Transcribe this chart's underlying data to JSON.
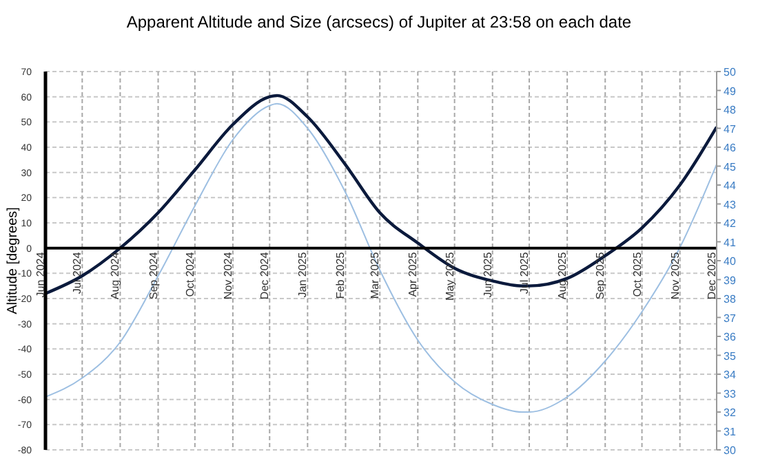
{
  "chart_data": {
    "type": "line",
    "title": "Apparent Altitude and Size (arcsecs) of Jupiter at 23:58 on each date",
    "ylabel": "Altitude [degrees]",
    "x": [
      "2024-06-01",
      "2024-07-01",
      "2024-08-01",
      "2024-09-01",
      "2024-10-01",
      "2024-11-01",
      "2024-12-01",
      "2024-12-07",
      "2025-01-01",
      "2025-02-01",
      "2025-03-01",
      "2025-04-01",
      "2025-05-01",
      "2025-06-01",
      "2025-06-25",
      "2025-07-01",
      "2025-08-01",
      "2025-09-01",
      "2025-10-01",
      "2025-11-01",
      "2025-12-01"
    ],
    "series": [
      {
        "color": "#0b1a3c",
        "values": [
          -18,
          -11,
          0,
          14,
          31,
          49,
          60,
          60.5,
          52,
          33,
          14,
          2,
          -8,
          -13,
          -15,
          -15,
          -12,
          -3,
          8,
          25,
          48
        ]
      },
      {
        "color": "#9dbfe2",
        "axis": "y2",
        "values": [
          32.8,
          33.8,
          35.7,
          39.2,
          42.9,
          46.4,
          48.2,
          48.3,
          47.0,
          43.6,
          39.5,
          35.8,
          33.6,
          32.4,
          32.0,
          32.0,
          32.8,
          34.7,
          37.3,
          40.7,
          45.1
        ]
      }
    ],
    "xlim": [
      "2024-06-01",
      "2025-12-01"
    ],
    "xticks": [
      {
        "value": "2024-06-01",
        "label": "Jun 2024"
      },
      {
        "value": "2024-07-01",
        "label": "Jul 2024"
      },
      {
        "value": "2024-08-01",
        "label": "Aug 2024"
      },
      {
        "value": "2024-09-01",
        "label": "Sep 2024"
      },
      {
        "value": "2024-10-01",
        "label": "Oct 2024"
      },
      {
        "value": "2024-11-01",
        "label": "Nov 2024"
      },
      {
        "value": "2024-12-01",
        "label": "Dec 2024"
      },
      {
        "value": "2025-01-01",
        "label": "Jan 2025"
      },
      {
        "value": "2025-02-01",
        "label": "Feb 2025"
      },
      {
        "value": "2025-03-01",
        "label": "Mar 2025"
      },
      {
        "value": "2025-04-01",
        "label": "Apr 2025"
      },
      {
        "value": "2025-05-01",
        "label": "May 2025"
      },
      {
        "value": "2025-06-01",
        "label": "Jun 2025"
      },
      {
        "value": "2025-07-01",
        "label": "Jul 2025"
      },
      {
        "value": "2025-08-01",
        "label": "Aug 2025"
      },
      {
        "value": "2025-09-01",
        "label": "Sep 2025"
      },
      {
        "value": "2025-10-01",
        "label": "Oct 2025"
      },
      {
        "value": "2025-11-01",
        "label": "Nov 2025"
      },
      {
        "value": "2025-12-01",
        "label": "Dec 2025"
      }
    ],
    "ylim": [
      -80,
      70
    ],
    "yticks": [
      -80,
      -70,
      -60,
      -50,
      -40,
      -30,
      -20,
      -10,
      0,
      10,
      20,
      30,
      40,
      50,
      60,
      70
    ],
    "y2lim": [
      30,
      50
    ],
    "y2ticks": [
      30,
      31,
      32,
      33,
      34,
      35,
      36,
      37,
      38,
      39,
      40,
      41,
      42,
      43,
      44,
      45,
      46,
      47,
      48,
      49,
      50
    ],
    "grid": true,
    "marker": "none",
    "line_style": "solid"
  }
}
